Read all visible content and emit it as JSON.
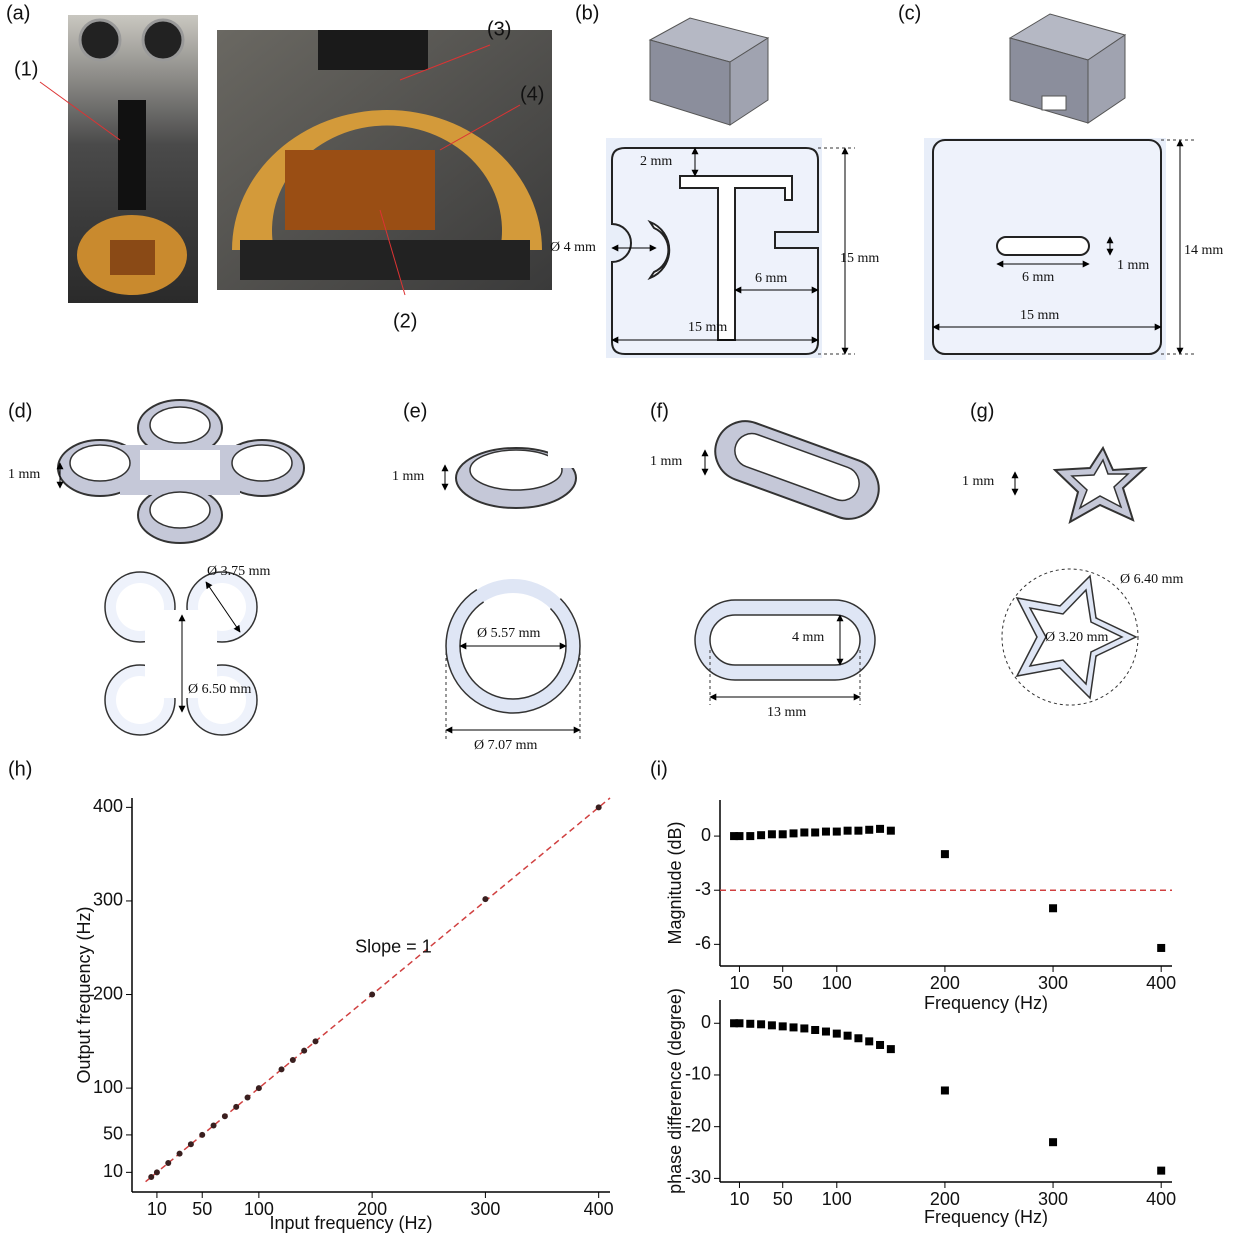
{
  "panels": {
    "a": {
      "label": "(a)",
      "callouts": [
        "(1)",
        "(2)",
        "(3)",
        "(4)"
      ]
    },
    "b": {
      "label": "(b)",
      "dims": [
        "2 mm",
        "Ø 4 mm",
        "6 mm",
        "15 mm",
        "15 mm"
      ]
    },
    "c": {
      "label": "(c)",
      "dims": [
        "6 mm",
        "1 mm",
        "15 mm",
        "14 mm"
      ]
    },
    "d": {
      "label": "(d)",
      "dims": [
        "1 mm",
        "Ø 3.75 mm",
        "Ø 6.50 mm"
      ]
    },
    "e": {
      "label": "(e)",
      "dims": [
        "1 mm",
        "Ø 5.57 mm",
        "Ø 7.07 mm"
      ]
    },
    "f": {
      "label": "(f)",
      "dims": [
        "1 mm",
        "4 mm",
        "13 mm"
      ]
    },
    "g": {
      "label": "(g)",
      "dims": [
        "1 mm",
        "Ø 6.40 mm",
        "Ø 3.20 mm"
      ]
    },
    "h": {
      "label": "(h)"
    },
    "i": {
      "label": "(i)"
    }
  },
  "chart_data": [
    {
      "type": "scatter",
      "x_label": "Input frequency (Hz)",
      "y_label": "Output frequency (Hz)",
      "x": [
        5,
        10,
        20,
        30,
        40,
        50,
        60,
        70,
        80,
        90,
        100,
        120,
        130,
        140,
        150,
        200,
        300,
        400
      ],
      "values": [
        5,
        10,
        20,
        30,
        40,
        50,
        60,
        70,
        80,
        90,
        100,
        120,
        130,
        140,
        150,
        200,
        302,
        400
      ],
      "color": "#3a1f1f",
      "marker": "circle",
      "xlim": [
        -12,
        410
      ],
      "xticks": [
        10,
        50,
        100,
        200,
        300,
        400
      ],
      "ylim": [
        -11,
        410
      ],
      "yticks": [
        10,
        50,
        100,
        200,
        300,
        400
      ],
      "reference_line": {
        "slope": 1,
        "intercept": 0,
        "color": "#d04040",
        "label": "Slope = 1"
      }
    },
    {
      "type": "scatter",
      "x_label": "Frequency (Hz)",
      "y_label": "Magnitude (dB)",
      "x": [
        5,
        10,
        20,
        30,
        40,
        50,
        60,
        70,
        80,
        90,
        100,
        110,
        120,
        130,
        140,
        150,
        200,
        300,
        400
      ],
      "values": [
        0,
        0,
        0,
        0.05,
        0.1,
        0.1,
        0.15,
        0.2,
        0.2,
        0.25,
        0.25,
        0.3,
        0.3,
        0.35,
        0.4,
        0.3,
        -1,
        -4,
        -6.2
      ],
      "color": "#000000",
      "marker": "square",
      "xlim": [
        -8,
        410
      ],
      "xticks": [
        10,
        50,
        100,
        200,
        300,
        400
      ],
      "ylim": [
        -7.2,
        2
      ],
      "yticks": [
        0,
        -3,
        -6
      ],
      "reference_line": {
        "y": -3,
        "color": "#d04040"
      }
    },
    {
      "type": "scatter",
      "x_label": "Frequency (Hz)",
      "y_label": "phase difference (degree)",
      "x": [
        5,
        10,
        20,
        30,
        40,
        50,
        60,
        70,
        80,
        90,
        100,
        110,
        120,
        130,
        140,
        150,
        200,
        300,
        400
      ],
      "values": [
        0,
        0,
        -0.1,
        -0.2,
        -0.4,
        -0.6,
        -0.8,
        -1,
        -1.3,
        -1.6,
        -2,
        -2.4,
        -2.9,
        -3.5,
        -4.2,
        -5,
        -13,
        -23,
        -28.5
      ],
      "color": "#000000",
      "marker": "square",
      "xlim": [
        -8,
        410
      ],
      "xticks": [
        10,
        50,
        100,
        200,
        300,
        400
      ],
      "ylim": [
        -30.7,
        4.5
      ],
      "yticks": [
        0,
        -10,
        -20,
        -30
      ]
    }
  ]
}
